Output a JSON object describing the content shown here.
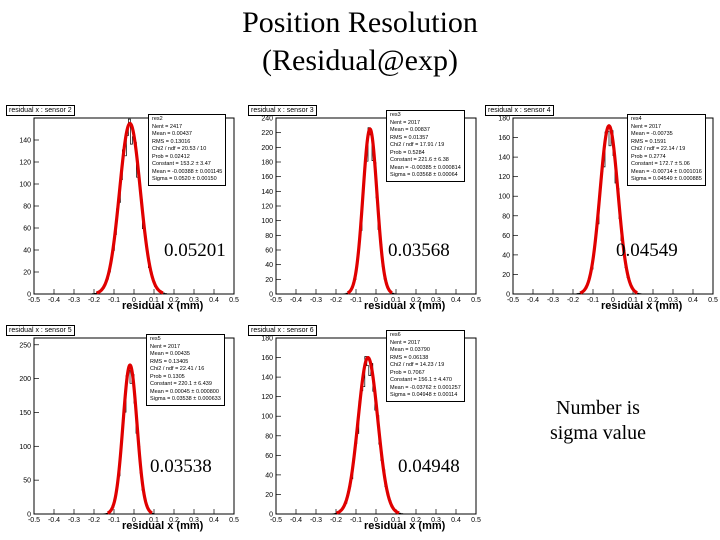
{
  "title_line1": "Position Resolution",
  "title_line2": "(Residual@exp)",
  "note_line1": "Number is",
  "note_line2": "sigma value",
  "chart_data": [
    {
      "type": "histogram",
      "title": "residual x : sensor 2",
      "xlabel": "residual x (mm)",
      "xlim": [
        -0.5,
        0.5
      ],
      "ylim": [
        0,
        160
      ],
      "yticks": [
        0,
        20,
        40,
        60,
        80,
        100,
        120,
        140
      ],
      "xticks": [
        "-0.5",
        "-0.4",
        "-0.3",
        "-0.2",
        "-0.1",
        "0",
        "0.1",
        "0.2",
        "0.3",
        "0.4",
        "0.5"
      ],
      "gauss": {
        "amp": 155,
        "mean": -0.02,
        "sigma": 0.052
      },
      "sigma_label": "0.05201",
      "stats": [
        "res2",
        "Nent = 2417",
        "Mean = 0.00437",
        "RMS = 0.13016",
        "Chi2 / ndf = 20.53 / 10",
        "Prob = 0.02412",
        "Constant = 153.2 ± 3.47",
        "Mean = -0.00388 ± 0.001145",
        "Sigma = 0.0520 ± 0.00150"
      ]
    },
    {
      "type": "histogram",
      "title": "residual x : sensor 3",
      "xlabel": "residual x (mm)",
      "xlim": [
        -0.5,
        0.5
      ],
      "ylim": [
        0,
        240
      ],
      "yticks": [
        0,
        20,
        40,
        60,
        80,
        100,
        120,
        140,
        160,
        180,
        200,
        220,
        240
      ],
      "xticks": [
        "-0.5",
        "-0.4",
        "-0.3",
        "-0.2",
        "-0.1",
        "0",
        "0.1",
        "0.2",
        "0.3",
        "0.4",
        "0.5"
      ],
      "gauss": {
        "amp": 225,
        "mean": -0.03,
        "sigma": 0.035
      },
      "sigma_label": "0.03568",
      "stats": [
        "res3",
        "Nent = 2017",
        "Mean = 0.00837",
        "RMS = 0.01357",
        "Chi2 / ndf = 17.91 / 19",
        "Prob = 0.5284",
        "Constant = 221.6 ± 6.38",
        "Mean = -0.00385 ± 0.000814",
        "Sigma = 0.03568 ± 0.00064"
      ]
    },
    {
      "type": "histogram",
      "title": "residual x : sensor 4",
      "xlabel": "residual x (mm)",
      "xlim": [
        -0.5,
        0.5
      ],
      "ylim": [
        0,
        180
      ],
      "yticks": [
        0,
        20,
        40,
        60,
        80,
        100,
        120,
        140,
        160,
        180
      ],
      "xticks": [
        "-0.5",
        "-0.4",
        "-0.3",
        "-0.2",
        "-0.1",
        "0",
        "0.1",
        "0.2",
        "0.3",
        "0.4",
        "0.5"
      ],
      "gauss": {
        "amp": 172,
        "mean": -0.02,
        "sigma": 0.045
      },
      "sigma_label": "0.04549",
      "stats": [
        "res4",
        "Nent = 2017",
        "Mean = -0.00735",
        "RMS = 0.1591",
        "Chi2 / ndf = 22.14 / 19",
        "Prob = 0.2774",
        "Constant = 172.7 ± 5.06",
        "Mean = -0.00714 ± 0.001016",
        "Sigma = 0.04549 ± 0.000885"
      ]
    },
    {
      "type": "histogram",
      "title": "residual x : sensor 5",
      "xlabel": "residual x (mm)",
      "xlim": [
        -0.5,
        0.5
      ],
      "ylim": [
        0,
        260
      ],
      "yticks": [
        0,
        50,
        100,
        150,
        200,
        250
      ],
      "xticks": [
        "-0.5",
        "-0.4",
        "-0.3",
        "-0.2",
        "-0.1",
        "0",
        "0.1",
        "0.2",
        "0.3",
        "0.4",
        "0.5"
      ],
      "gauss": {
        "amp": 220,
        "mean": -0.02,
        "sigma": 0.035
      },
      "sigma_label": "0.03538",
      "stats": [
        "res5",
        "Nent = 2017",
        "Mean = 0.00435",
        "RMS = 0.13405",
        "Chi2 / ndf = 22.41 / 16",
        "Prob = 0.1305",
        "Constant = 220.1 ± 6.439",
        "Mean = 0.00045 ± 0.000800",
        "Sigma = 0.03538 ± 0.000633"
      ]
    },
    {
      "type": "histogram",
      "title": "residual x : sensor 6",
      "xlabel": "residual x (mm)",
      "xlim": [
        -0.5,
        0.5
      ],
      "ylim": [
        0,
        180
      ],
      "yticks": [
        0,
        20,
        40,
        60,
        80,
        100,
        120,
        140,
        160,
        180
      ],
      "xticks": [
        "-0.5",
        "-0.4",
        "-0.3",
        "-0.2",
        "-0.1",
        "0",
        "0.1",
        "0.2",
        "0.3",
        "0.4",
        "0.5"
      ],
      "gauss": {
        "amp": 160,
        "mean": -0.04,
        "sigma": 0.049
      },
      "sigma_label": "0.04948",
      "stats": [
        "res6",
        "Nent = 2017",
        "Mean = 0.03790",
        "RMS = 0.06138",
        "Chi2 / ndf = 14.23 / 19",
        "Prob = 0.7067",
        "Constant = 156.1 ± 4.470",
        "Mean = -0.03762 ± 0.001257",
        "Sigma = 0.04948 ± 0.00114"
      ]
    }
  ]
}
